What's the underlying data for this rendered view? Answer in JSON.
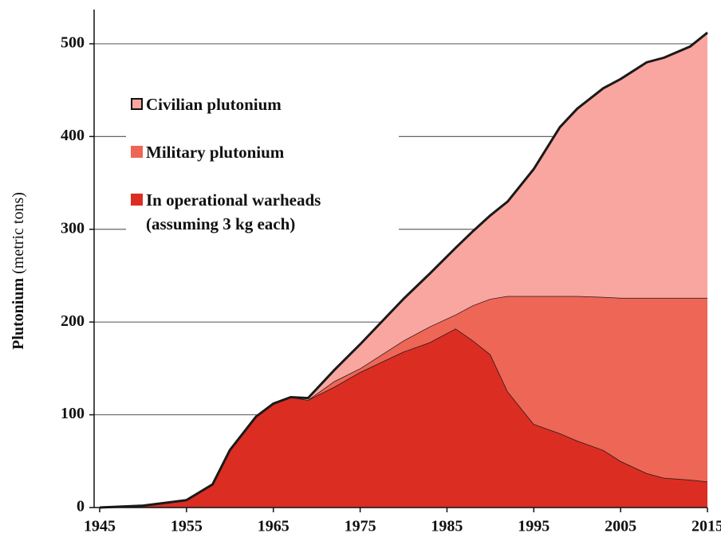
{
  "chart_data": {
    "type": "stacked_area",
    "y_label": "Plutonium",
    "y_label_unit": "(metric tons)",
    "x": [
      1945,
      1950,
      1955,
      1958,
      1960,
      1963,
      1965,
      1967,
      1969,
      1972,
      1975,
      1980,
      1983,
      1986,
      1988,
      1990,
      1992,
      1995,
      1998,
      2000,
      2003,
      2005,
      2008,
      2010,
      2013,
      2015
    ],
    "series": [
      {
        "name": "In operational warheads (assuming 3 kg each)",
        "color": "#dc2d23",
        "values": [
          0,
          2,
          8,
          25,
          62,
          98,
          112,
          119,
          116,
          130,
          146,
          168,
          178,
          193,
          180,
          165,
          125,
          90,
          80,
          72,
          62,
          50,
          37,
          32,
          30,
          28
        ]
      },
      {
        "name": "Military plutonium",
        "color": "#ee6656",
        "values": [
          0,
          0,
          0,
          0,
          0,
          0,
          0,
          0,
          0,
          6,
          4,
          12,
          17,
          15,
          38,
          60,
          103,
          138,
          148,
          156,
          165,
          176,
          189,
          194,
          196,
          198
        ]
      },
      {
        "name": "Civilian plutonium",
        "color": "#f9a6a0",
        "values": [
          0,
          0,
          0,
          0,
          0,
          0,
          0,
          0,
          2,
          12,
          26,
          45,
          57,
          72,
          80,
          90,
          102,
          137,
          182,
          202,
          225,
          236,
          254,
          259,
          271,
          286
        ]
      }
    ],
    "xlim": [
      1945,
      2015
    ],
    "xticks": [
      1945,
      1955,
      1965,
      1975,
      1985,
      1995,
      2005,
      2015
    ],
    "ylim": [
      0,
      530
    ],
    "yticks": [
      0,
      100,
      200,
      300,
      400,
      500
    ],
    "grid": true
  }
}
